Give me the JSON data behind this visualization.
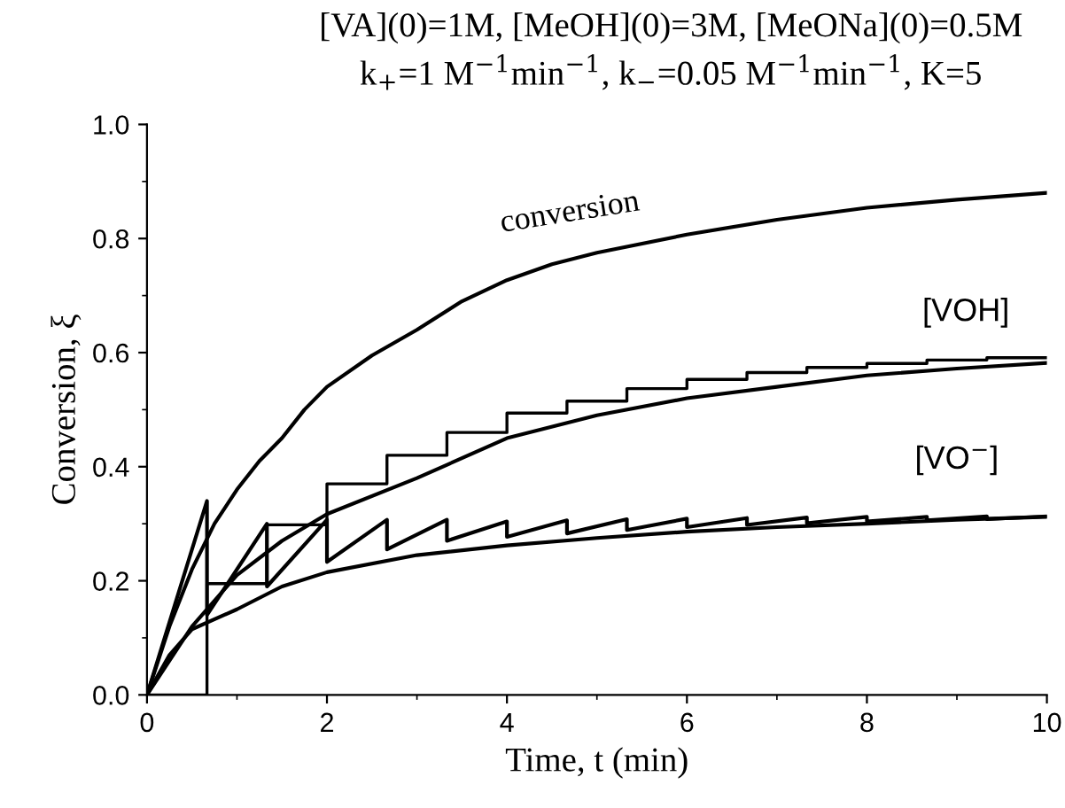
{
  "chart_data": {
    "type": "line",
    "title": "[VA](0)=1M, [MeOH](0)=3M, [MeONa](0)=0.5M",
    "subtitle": "k$_{+}$=1 M$^{−1}$min$^{−1}$, k$_{−}$=0.05 M$^{−1}$min$^{−1}$, K=5",
    "xlabel": "Time, t (min)",
    "ylabel": "Conversion, ξ",
    "xlim": [
      0,
      10
    ],
    "ylim": [
      0,
      1.0
    ],
    "xticks": [
      0,
      2,
      4,
      6,
      8,
      10
    ],
    "yticks": [
      {
        "value": 0,
        "label": "0.0"
      },
      {
        "value": 0.2,
        "label": "0.2"
      },
      {
        "value": 0.4,
        "label": "0.4"
      },
      {
        "value": 0.6,
        "label": "0.6"
      },
      {
        "value": 0.8,
        "label": "0.8"
      },
      {
        "value": 1.0,
        "label": "1.0"
      }
    ],
    "grid": false,
    "marker": "none",
    "line_style": "solid",
    "series": [
      {
        "color": "#000000",
        "x": [
          0,
          0.25,
          0.5,
          0.75,
          1,
          1.25,
          1.5,
          1.75,
          2,
          2.5,
          3,
          3.5,
          4,
          4.5,
          5,
          6,
          7,
          8,
          9,
          10
        ],
        "values": [
          0,
          0.12,
          0.22,
          0.3,
          0.36,
          0.41,
          0.45,
          0.5,
          0.54,
          0.595,
          0.64,
          0.69,
          0.727,
          0.755,
          0.775,
          0.807,
          0.833,
          0.854,
          0.868,
          0.88
        ]
      },
      {
        "color": "#000000",
        "x": [
          0,
          0.5,
          1,
          1.5,
          2,
          3,
          4,
          5,
          6,
          7,
          8,
          9,
          10
        ],
        "values": [
          0,
          0.12,
          0.21,
          0.27,
          0.317,
          0.38,
          0.45,
          0.49,
          0.52,
          0.54,
          0.56,
          0.572,
          0.582
        ]
      },
      {
        "color": "#000000",
        "x": [
          0,
          0.25,
          0.5,
          1,
          1.5,
          2,
          3,
          4,
          5,
          6,
          7,
          8,
          9,
          10
        ],
        "values": [
          0,
          0.07,
          0.115,
          0.15,
          0.19,
          0.215,
          0.245,
          0.262,
          0.275,
          0.286,
          0.294,
          0.3,
          0.307,
          0.312
        ]
      },
      {
        "type": "step",
        "color": "#000000",
        "x": [
          0,
          0.667,
          1.333,
          2,
          2.667,
          3.333,
          4,
          4.667,
          5.333,
          6,
          6.667,
          7.333,
          8,
          8.667,
          9.333,
          10
        ],
        "values": [
          0,
          0.195,
          0.298,
          0.37,
          0.42,
          0.46,
          0.494,
          0.515,
          0.537,
          0.553,
          0.565,
          0.574,
          0.581,
          0.587,
          0.591,
          0.591
        ]
      },
      {
        "color": "#000000",
        "x": [
          0,
          0.667,
          0.667,
          1.333,
          1.333,
          2,
          2,
          2.667,
          2.667,
          3.333,
          3.333,
          4,
          4,
          4.667,
          4.667,
          5.333,
          5.333,
          6,
          6,
          6.667,
          6.667,
          7.333,
          7.333,
          8,
          8,
          8.667,
          8.667,
          9.333,
          9.333,
          10
        ],
        "values": [
          0,
          0.34,
          0.14,
          0.3,
          0.19,
          0.307,
          0.233,
          0.307,
          0.255,
          0.307,
          0.27,
          0.304,
          0.277,
          0.306,
          0.283,
          0.308,
          0.289,
          0.309,
          0.294,
          0.31,
          0.298,
          0.311,
          0.301,
          0.312,
          0.304,
          0.312,
          0.306,
          0.313,
          0.308,
          0.313
        ]
      }
    ],
    "annotations": [
      {
        "text": "conversion",
        "x": 4.7,
        "y": 0.765
      },
      {
        "text": "[VOH]",
        "x": 9.1,
        "y": 0.575
      },
      {
        "text": "[VO$^{−}$]",
        "x": 9.0,
        "y": 0.307
      }
    ]
  }
}
